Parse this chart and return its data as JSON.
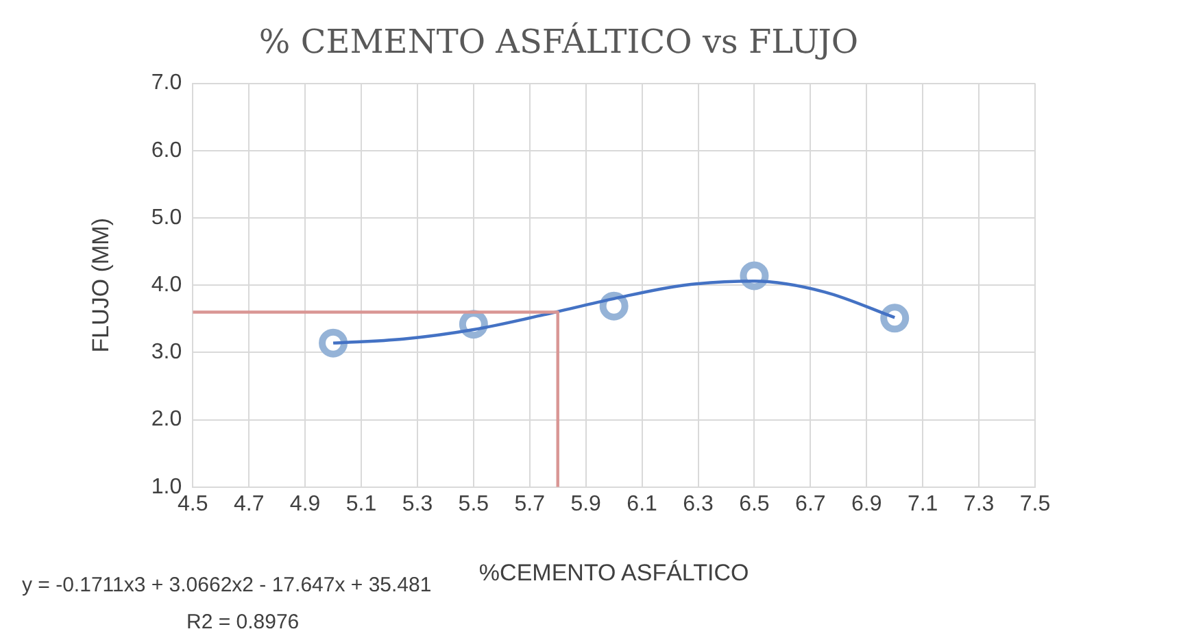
{
  "chart_data": {
    "type": "scatter",
    "title": "% CEMENTO ASFÁLTICO vs FLUJO",
    "xlabel": "%CEMENTO ASFÁLTICO",
    "ylabel": "FLUJO (MM)",
    "annotations": [
      "y = -0.1711x3 + 3.0662x2 - 17.647x + 35.481",
      "R2 = 0.8976"
    ],
    "series": [
      {
        "type": "line",
        "color": "#d99694",
        "marker": "none",
        "x": [
          4.5,
          5.8,
          5.8
        ],
        "values": [
          3.6,
          3.6,
          1.0
        ]
      },
      {
        "type": "line",
        "color": "#4472c4",
        "marker": "none",
        "x": [
          5.0,
          5.25,
          5.5,
          5.75,
          6.0,
          6.25,
          6.5,
          6.75,
          7.0
        ],
        "values": [
          3.14,
          3.2,
          3.34,
          3.56,
          3.8,
          4.0,
          4.06,
          3.9,
          3.52
        ]
      },
      {
        "color": "#95b3d7",
        "marker": "circle",
        "x": [
          5.0,
          5.5,
          6.0,
          6.5,
          7.0
        ],
        "values": [
          3.14,
          3.42,
          3.69,
          4.14,
          3.51
        ]
      }
    ],
    "xlim": [
      4.5,
      7.5
    ],
    "xticks": [
      4.5,
      4.7,
      4.9,
      5.1,
      5.3,
      5.5,
      5.7,
      5.9,
      6.1,
      6.3,
      6.5,
      6.7,
      6.9,
      7.1,
      7.3,
      7.5
    ],
    "ylim": [
      1,
      7
    ],
    "yticks": [
      {
        "value": 1,
        "label": "1.0"
      },
      {
        "value": 2,
        "label": "2.0"
      },
      {
        "value": 3,
        "label": "3.0"
      },
      {
        "value": 4,
        "label": "4.0"
      },
      {
        "value": 5,
        "label": "5.0"
      },
      {
        "value": 6,
        "label": "6.0"
      },
      {
        "value": 7,
        "label": "7.0"
      }
    ],
    "grid": true
  }
}
